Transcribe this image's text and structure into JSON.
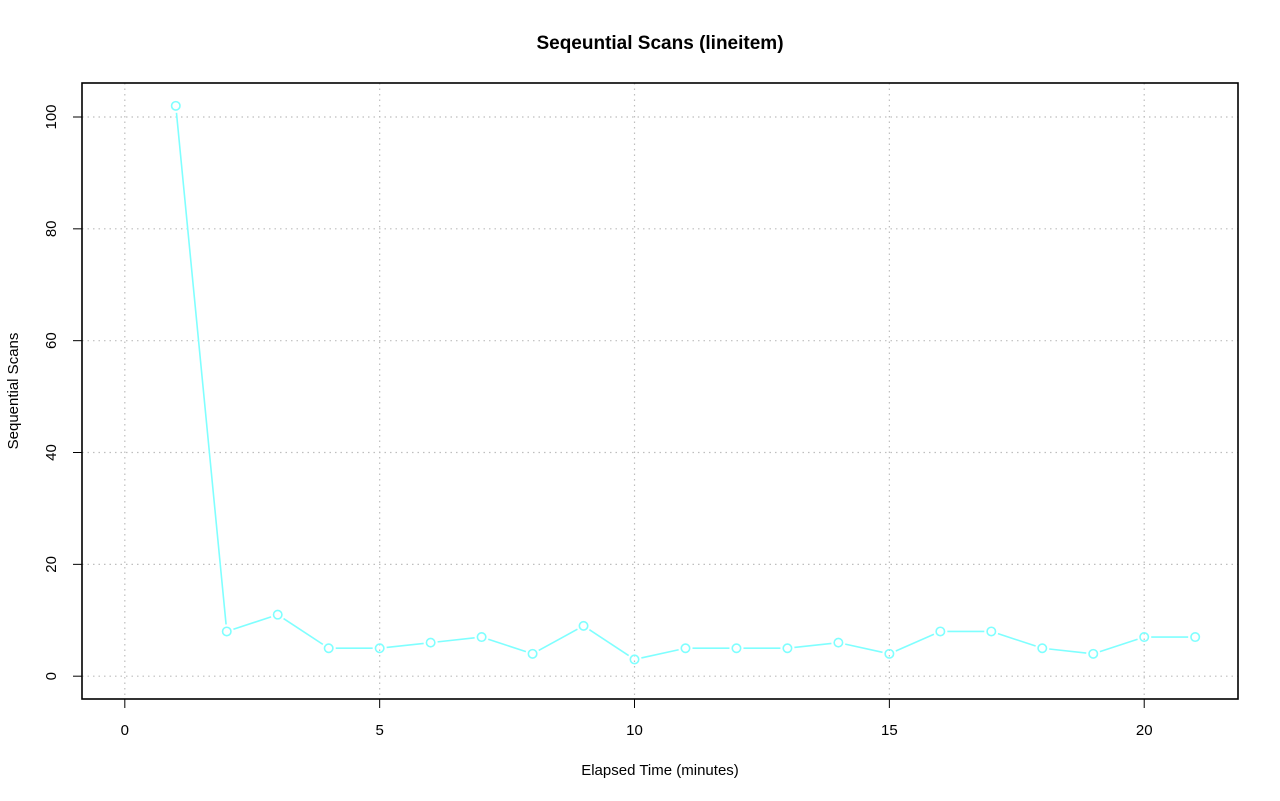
{
  "chart_data": {
    "type": "line",
    "title": "Seqeuntial Scans (lineitem)",
    "xlabel": "Elapsed Time (minutes)",
    "ylabel": "Sequential Scans",
    "xlim": [
      -0.84,
      21.84
    ],
    "ylim": [
      -4.08,
      106.08
    ],
    "xticks": [
      0,
      5,
      10,
      15,
      20
    ],
    "yticks": [
      0,
      20,
      40,
      60,
      80,
      100
    ],
    "grid": true,
    "legend": "none",
    "series": [
      {
        "color": "#7fffff",
        "marker": "open-circle",
        "x": [
          1,
          2,
          3,
          4,
          5,
          6,
          7,
          8,
          9,
          10,
          11,
          12,
          13,
          14,
          15,
          16,
          17,
          18,
          19,
          20,
          21
        ],
        "y": [
          102,
          8,
          11,
          5,
          5,
          6,
          7,
          4,
          9,
          3,
          5,
          5,
          5,
          6,
          4,
          8,
          8,
          5,
          4,
          7,
          7
        ]
      }
    ]
  }
}
